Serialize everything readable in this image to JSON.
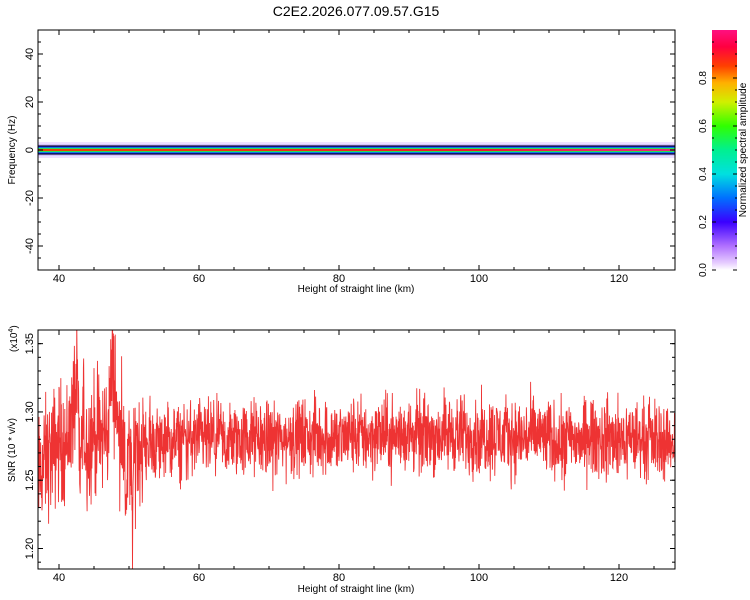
{
  "title": "C2E2.2026.077.09.57.G15",
  "colors": {
    "snr_line": "#ee3333",
    "axis": "#000000",
    "background": "#ffffff"
  },
  "chart_data": [
    {
      "type": "heatmap",
      "title": "C2E2.2026.077.09.57.G15",
      "xlabel": "Height of straight line (km)",
      "ylabel": "Frequency (Hz)",
      "xlim": [
        37,
        128
      ],
      "ylim": [
        -50,
        50
      ],
      "xticks": [
        40,
        60,
        80,
        100,
        120
      ],
      "yticks": [
        -40,
        -20,
        0,
        20,
        40
      ],
      "grid": false,
      "colorbar": {
        "label": "Normalized spectral amplitude",
        "range": [
          0,
          1
        ],
        "ticks": [
          0.0,
          0.2,
          0.4,
          0.6,
          0.8
        ],
        "tick_labels": [
          "0.0",
          "0.2",
          "0.4",
          "0.6",
          "0.8"
        ],
        "colormap": "rainbow (white-violet-blue-cyan-green-yellow-orange-red-magenta)"
      },
      "ridge": {
        "frequency_hz": 0,
        "x_range": [
          37,
          128
        ],
        "peak_amplitude_near_x": 125
      }
    },
    {
      "type": "line",
      "xlabel": "Height of straight line (km)",
      "ylabel": "SNR (10 * v/v)",
      "yscale_label": "(x10^4)",
      "yscale_base": "(x10",
      "yscale_exp": "4",
      "yscale_close": ")",
      "xlim": [
        37,
        128
      ],
      "ylim": [
        1.185,
        1.36
      ],
      "xticks": [
        40,
        60,
        80,
        100,
        120
      ],
      "yticks": [
        1.2,
        1.25,
        1.3,
        1.35
      ],
      "ytick_labels": [
        "1.20",
        "1.25",
        "1.30",
        "1.35"
      ],
      "grid": false,
      "series": [
        {
          "x": [
            37,
            38,
            39,
            40,
            41,
            42,
            42.5,
            43,
            43.5,
            44,
            45,
            46,
            47,
            47.5,
            48,
            48.5,
            49,
            49.5,
            50,
            50.5,
            51,
            52,
            54,
            56,
            58,
            60,
            62,
            64,
            66,
            68,
            70,
            72,
            74,
            76,
            78,
            80,
            82,
            84,
            86,
            88,
            90,
            92,
            94,
            96,
            98,
            100,
            102,
            104,
            106,
            108,
            110,
            112,
            114,
            116,
            118,
            120,
            122,
            124,
            126,
            128
          ],
          "y": [
            1.25,
            1.265,
            1.27,
            1.28,
            1.275,
            1.3,
            1.32,
            1.26,
            1.29,
            1.275,
            1.285,
            1.28,
            1.29,
            1.33,
            1.32,
            1.28,
            1.3,
            1.24,
            1.27,
            1.23,
            1.28,
            1.275,
            1.278,
            1.277,
            1.279,
            1.28,
            1.279,
            1.278,
            1.28,
            1.281,
            1.28,
            1.279,
            1.282,
            1.281,
            1.282,
            1.28,
            1.283,
            1.282,
            1.283,
            1.282,
            1.284,
            1.283,
            1.283,
            1.284,
            1.283,
            1.282,
            1.283,
            1.282,
            1.281,
            1.283,
            1.28,
            1.279,
            1.28,
            1.281,
            1.28,
            1.279,
            1.281,
            1.28,
            1.279,
            1.278
          ]
        }
      ]
    }
  ]
}
